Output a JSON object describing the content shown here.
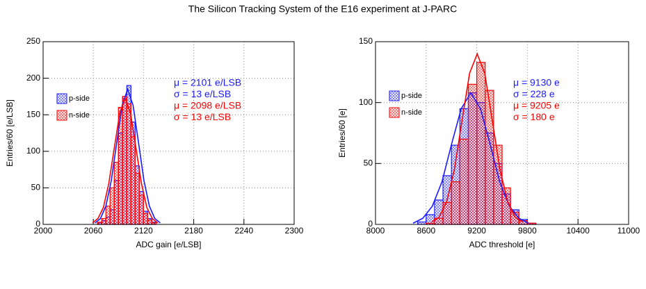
{
  "title": "The Silicon Tracking System of the E16 experiment at J-PARC",
  "chart_data": [
    {
      "type": "histogram",
      "xlabel": "ADC gain [e/LSB]",
      "ylabel": "Entries/60 [e/LSB]",
      "xlim": [
        2000,
        2300
      ],
      "xticks": [
        2000,
        2060,
        2120,
        2180,
        2240,
        2300
      ],
      "ylim": [
        0,
        250
      ],
      "yticks": [
        0,
        50,
        100,
        150,
        200,
        250
      ],
      "grid": true,
      "bins": [
        2065,
        2070,
        2075,
        2080,
        2085,
        2090,
        2095,
        2100,
        2105,
        2110,
        2115,
        2120,
        2125,
        2130,
        2135
      ],
      "series": [
        {
          "name": "p-side",
          "color": "#1a1aff",
          "values": [
            2,
            5,
            10,
            20,
            60,
            125,
            175,
            190,
            140,
            80,
            45,
            18,
            8,
            3
          ]
        },
        {
          "name": "n-side",
          "color": "#ff0000",
          "values": [
            3,
            8,
            25,
            50,
            85,
            160,
            175,
            165,
            120,
            70,
            40,
            15,
            6,
            2
          ]
        }
      ],
      "fits": [
        {
          "color": "#1a1aff",
          "x": [
            2062,
            2068.5,
            2075,
            2081.5,
            2088,
            2094.5,
            2101,
            2107.5,
            2114,
            2120.5,
            2127,
            2133.5,
            2140
          ],
          "values": [
            2,
            8,
            25,
            60,
            112,
            163,
            185,
            163,
            112,
            60,
            25,
            8,
            2
          ]
        },
        {
          "color": "#ff0000",
          "x": [
            2059,
            2065.5,
            2072,
            2078.5,
            2085,
            2091.5,
            2098,
            2104.5,
            2111,
            2117.5,
            2124,
            2130.5,
            2137
          ],
          "values": [
            2,
            8,
            23,
            56,
            104,
            152,
            172,
            152,
            104,
            56,
            23,
            8,
            2
          ]
        }
      ],
      "annotations": [
        {
          "text": "μ = 2101 e/LSB",
          "color": "#1a1aff"
        },
        {
          "text": "σ = 13 e/LSB",
          "color": "#1a1aff"
        },
        {
          "text": "μ = 2098 e/LSB",
          "color": "#ff0000"
        },
        {
          "text": "σ = 13 e/LSB",
          "color": "#ff0000"
        }
      ]
    },
    {
      "type": "histogram",
      "xlabel": "ADC threshold [e]",
      "ylabel": "Entries/60 [e]",
      "xlim": [
        8000,
        11000
      ],
      "xticks": [
        8000,
        8600,
        9200,
        9800,
        10400,
        11000
      ],
      "ylim": [
        0,
        150
      ],
      "yticks": [
        0,
        50,
        100,
        150
      ],
      "grid": true,
      "bins": [
        8500,
        8600,
        8700,
        8800,
        8900,
        9000,
        9100,
        9200,
        9300,
        9400,
        9500,
        9600,
        9700,
        9800,
        9900
      ],
      "series": [
        {
          "name": "p-side",
          "color": "#1a1aff",
          "values": [
            2,
            8,
            20,
            40,
            65,
            95,
            108,
            100,
            75,
            50,
            25,
            12,
            4,
            1
          ]
        },
        {
          "name": "n-side",
          "color": "#ff0000",
          "values": [
            0,
            1,
            5,
            18,
            35,
            70,
            115,
            133,
            110,
            65,
            30,
            10,
            3,
            1
          ]
        }
      ],
      "fits": [
        {
          "color": "#1a1aff",
          "x": [
            8446,
            8560,
            8674,
            8788,
            8902,
            9016,
            9130,
            9244,
            9358,
            9472,
            9586,
            9700,
            9814
          ],
          "values": [
            1,
            5,
            15,
            35,
            66,
            95,
            108,
            95,
            66,
            35,
            15,
            5,
            1
          ]
        },
        {
          "color": "#ff0000",
          "x": [
            8665,
            8755,
            8845,
            8935,
            9025,
            9115,
            9205,
            9295,
            9385,
            9475,
            9565,
            9655,
            9745
          ],
          "values": [
            2,
            6,
            19,
            45,
            85,
            124,
            140,
            124,
            85,
            45,
            19,
            6,
            2
          ]
        }
      ],
      "annotations": [
        {
          "text": "μ = 9130 e",
          "color": "#1a1aff"
        },
        {
          "text": "σ = 228 e",
          "color": "#1a1aff"
        },
        {
          "text": "μ = 9205 e",
          "color": "#ff0000"
        },
        {
          "text": "σ = 180 e",
          "color": "#ff0000"
        }
      ]
    }
  ]
}
